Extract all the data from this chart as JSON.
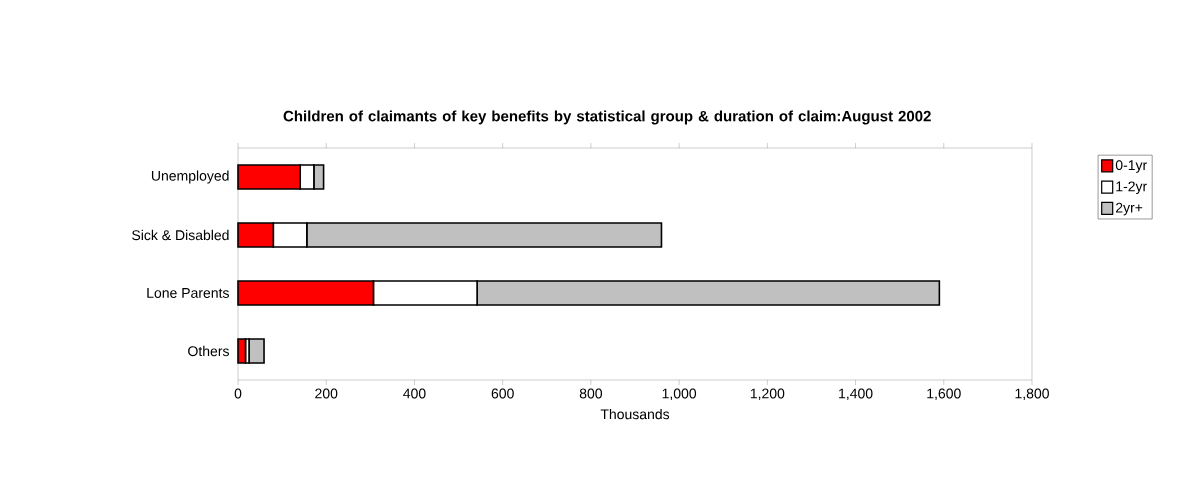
{
  "chart_data": {
    "type": "bar",
    "orientation": "horizontal",
    "stacked": true,
    "title": "Children of claimants of key benefits by statistical group & duration of claim:August  2002",
    "xlabel": "Thousands",
    "categories": [
      "Unemployed",
      "Sick & Disabled",
      "Lone Parents",
      "Others"
    ],
    "series": [
      {
        "name": "0-1yr",
        "color": "#ff0000",
        "values": [
          141,
          80,
          307,
          17
        ]
      },
      {
        "name": "1-2yr",
        "color": "#ffffff",
        "values": [
          31,
          76,
          235,
          8
        ]
      },
      {
        "name": "2yr+",
        "color": "#c0c0c0",
        "values": [
          22,
          804,
          1048,
          34
        ]
      }
    ],
    "xlim": [
      0,
      1800
    ],
    "xticks": [
      0,
      200,
      400,
      600,
      800,
      {
        "value": 1000,
        "label": "1,000"
      },
      {
        "value": 1200,
        "label": "1,200"
      },
      {
        "value": 1400,
        "label": "1,400"
      },
      {
        "value": 1600,
        "label": "1,600"
      },
      {
        "value": 1800,
        "label": "1,800"
      }
    ],
    "grid": false,
    "legend": "right"
  }
}
